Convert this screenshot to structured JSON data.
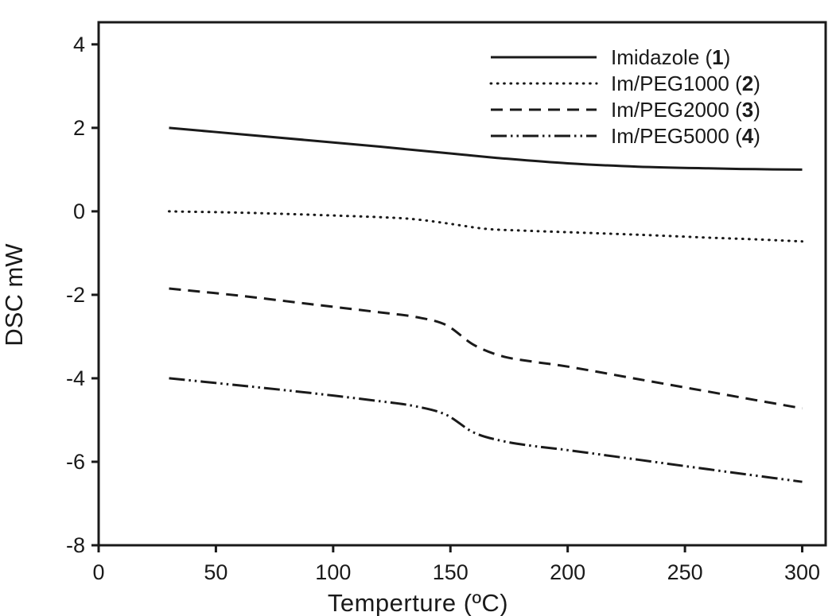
{
  "figure": {
    "background": "#ffffff",
    "ink_color": "#1a1a1a"
  },
  "chart_data": {
    "type": "line",
    "title": "",
    "xlabel": "Temperture (ºC)",
    "ylabel": "DSC mW",
    "xlim": [
      0,
      310
    ],
    "ylim": [
      -8,
      4.53
    ],
    "xticks": [
      "0",
      "50",
      "100",
      "150",
      "200",
      "250",
      "300"
    ],
    "xtick_values": [
      0,
      50,
      100,
      150,
      200,
      250,
      300
    ],
    "yticks": [
      "4",
      "2",
      "0",
      "-2",
      "-4",
      "-6",
      "-8"
    ],
    "ytick_values": [
      4,
      2,
      0,
      -2,
      -4,
      -6,
      -8
    ],
    "grid": false,
    "legend_position": "upper-right",
    "series": [
      {
        "name": "Imidazole",
        "compound_number": "1",
        "legend_label": "Imidazole (1)",
        "line_style": "solid",
        "x": [
          30,
          60,
          90,
          120,
          140,
          155,
          170,
          200,
          230,
          260,
          280,
          300
        ],
        "y": [
          2.0,
          1.85,
          1.7,
          1.55,
          1.44,
          1.36,
          1.28,
          1.15,
          1.07,
          1.03,
          1.01,
          1.0
        ]
      },
      {
        "name": "Im/PEG1000",
        "compound_number": "2",
        "legend_label": "Im/PEG1000 (2)",
        "line_style": "dotted",
        "x": [
          30,
          60,
          90,
          120,
          135,
          150,
          165,
          180,
          200,
          230,
          260,
          280,
          300
        ],
        "y": [
          0.0,
          -0.03,
          -0.08,
          -0.14,
          -0.19,
          -0.3,
          -0.42,
          -0.46,
          -0.5,
          -0.56,
          -0.63,
          -0.67,
          -0.72
        ]
      },
      {
        "name": "Im/PEG2000",
        "compound_number": "3",
        "legend_label": "Im/PEG2000 (3)",
        "line_style": "dashed",
        "x": [
          30,
          60,
          90,
          120,
          135,
          148,
          160,
          172,
          185,
          200,
          230,
          260,
          280,
          300
        ],
        "y": [
          -1.85,
          -2.02,
          -2.22,
          -2.42,
          -2.53,
          -2.72,
          -3.2,
          -3.47,
          -3.6,
          -3.72,
          -4.02,
          -4.32,
          -4.52,
          -4.72
        ]
      },
      {
        "name": "Im/PEG5000",
        "compound_number": "4",
        "legend_label": "Im/PEG5000 (4)",
        "line_style": "dash-dot-dot",
        "x": [
          30,
          60,
          90,
          120,
          135,
          148,
          160,
          172,
          185,
          200,
          230,
          260,
          280,
          300
        ],
        "y": [
          -4.0,
          -4.17,
          -4.35,
          -4.55,
          -4.67,
          -4.87,
          -5.3,
          -5.5,
          -5.62,
          -5.72,
          -5.95,
          -6.18,
          -6.33,
          -6.48
        ]
      }
    ]
  }
}
